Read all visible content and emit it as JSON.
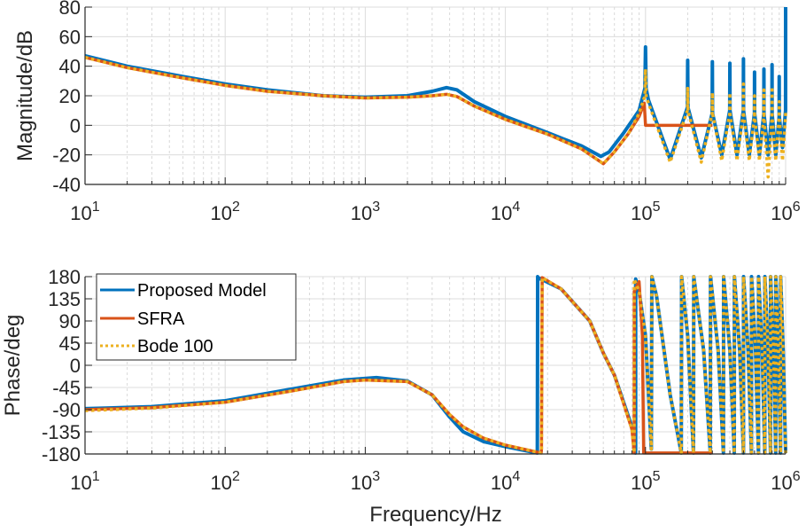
{
  "chart_data": [
    {
      "type": "line",
      "panel": "magnitude",
      "title": "",
      "xlabel": "",
      "ylabel": "Magnitude/dB",
      "xscale": "log",
      "xlim": [
        10,
        1000000
      ],
      "ylim": [
        -40,
        80
      ],
      "xticks": [
        {
          "base": "10",
          "exp": "1"
        },
        {
          "base": "10",
          "exp": "2"
        },
        {
          "base": "10",
          "exp": "3"
        },
        {
          "base": "10",
          "exp": "4"
        },
        {
          "base": "10",
          "exp": "5"
        },
        {
          "base": "10",
          "exp": "6"
        }
      ],
      "yticks": [
        "80",
        "60",
        "40",
        "20",
        "0",
        "-20",
        "-40"
      ],
      "ytick_values": [
        80,
        60,
        40,
        20,
        0,
        -20,
        -40
      ],
      "grid": true,
      "series": [
        {
          "name": "Proposed Model",
          "color": "#0072BD",
          "style": "solid",
          "x": [
            10,
            20,
            50,
            100,
            200,
            500,
            1000,
            2000,
            3000,
            3800,
            4500,
            6000,
            10000,
            20000,
            35000,
            48000,
            55000,
            70000,
            90000,
            99000,
            100000,
            101000,
            105000,
            150000,
            199000,
            200000,
            201000,
            250000,
            299000,
            300000,
            301000,
            350000,
            399000,
            400000,
            401000,
            450000,
            499000,
            500000,
            501000,
            550000,
            599000,
            600000,
            601000,
            650000,
            699000,
            700000,
            701000,
            750000,
            799000,
            800000,
            801000,
            850000,
            899000,
            900000,
            901000,
            950000,
            999000,
            1000000
          ],
          "y": [
            47,
            40,
            33,
            28,
            24,
            20,
            19,
            20,
            23,
            25.5,
            24,
            16,
            6,
            -5,
            -14,
            -21,
            -18,
            -5,
            10,
            25,
            53,
            25,
            17,
            -23,
            12,
            44,
            12,
            -22,
            8,
            43,
            8,
            -20,
            10,
            42,
            10,
            -20,
            10,
            45,
            10,
            -20,
            8,
            36,
            8,
            -20,
            8,
            38,
            8,
            -20,
            8,
            41,
            8,
            -20,
            6,
            33,
            6,
            -15,
            10,
            80
          ]
        },
        {
          "name": "SFRA",
          "color": "#D95319",
          "style": "solid",
          "x": [
            10,
            20,
            50,
            100,
            200,
            500,
            1000,
            2000,
            3000,
            3800,
            4500,
            6000,
            10000,
            20000,
            35000,
            50000,
            60000,
            75000,
            90000,
            98000,
            100000,
            300000
          ],
          "y": [
            46,
            39,
            32,
            27,
            23,
            20,
            18.5,
            19,
            20,
            21,
            19.5,
            13,
            4,
            -6,
            -16,
            -26,
            -18,
            -6,
            6,
            15,
            0,
            0
          ]
        },
        {
          "name": "Bode 100",
          "color": "#EDB120",
          "style": "dotted",
          "x": [
            10,
            20,
            50,
            100,
            200,
            500,
            1000,
            2000,
            3000,
            3800,
            4500,
            6000,
            10000,
            20000,
            35000,
            50000,
            60000,
            75000,
            90000,
            99000,
            100000,
            101000,
            105000,
            150000,
            199000,
            200000,
            201000,
            250000,
            299000,
            300000,
            301000,
            350000,
            399000,
            400000,
            401000,
            450000,
            499000,
            500000,
            501000,
            550000,
            599000,
            600000,
            601000,
            650000,
            699000,
            700000,
            701000,
            750000,
            799000,
            800000,
            801000,
            850000,
            899000,
            900000,
            901000,
            950000,
            999000,
            1000000
          ],
          "y": [
            46,
            39,
            32,
            27,
            23,
            20,
            18.5,
            19,
            20,
            21,
            19.5,
            13,
            4,
            -6,
            -16,
            -26,
            -18,
            -6,
            8,
            20,
            38,
            20,
            15,
            -25,
            10,
            25,
            10,
            -25,
            8,
            22,
            8,
            -24,
            8,
            22,
            8,
            -24,
            8,
            28,
            8,
            -24,
            6,
            20,
            6,
            -24,
            6,
            24,
            6,
            -35,
            6,
            26,
            6,
            -24,
            6,
            16,
            6,
            -24,
            6,
            10
          ]
        }
      ]
    },
    {
      "type": "line",
      "panel": "phase",
      "title": "",
      "xlabel": "Frequency/Hz",
      "ylabel": "Phase/deg",
      "xscale": "log",
      "xlim": [
        10,
        1000000
      ],
      "ylim": [
        -180,
        180
      ],
      "xticks": [
        {
          "base": "10",
          "exp": "1"
        },
        {
          "base": "10",
          "exp": "2"
        },
        {
          "base": "10",
          "exp": "3"
        },
        {
          "base": "10",
          "exp": "4"
        },
        {
          "base": "10",
          "exp": "5"
        },
        {
          "base": "10",
          "exp": "6"
        }
      ],
      "yticks": [
        "180",
        "135",
        "90",
        "45",
        "0",
        "-45",
        "-90",
        "-135",
        "-180"
      ],
      "ytick_values": [
        180,
        135,
        90,
        45,
        0,
        -45,
        -90,
        -135,
        -180
      ],
      "grid": true,
      "legend": {
        "location": "top-left",
        "entries": [
          "Proposed Model",
          "SFRA",
          "Bode 100"
        ]
      },
      "series": [
        {
          "name": "Proposed Model",
          "color": "#0072BD",
          "style": "solid",
          "x": [
            10,
            30,
            100,
            300,
            700,
            1200,
            2000,
            3000,
            4000,
            5000,
            7000,
            10000,
            16900,
            17000,
            17100,
            25000,
            40000,
            50000,
            60000,
            80000,
            85000,
            85100,
            90000,
            100000,
            110000,
            111000,
            120000,
            150000,
            180000,
            181000,
            200000,
            220000,
            221000,
            260000,
            290000,
            291000,
            330000,
            360000,
            361000,
            400000,
            430000,
            431000,
            470000,
            500000,
            501000,
            540000,
            570000,
            571000,
            610000,
            640000,
            641000,
            680000,
            710000,
            711000,
            750000,
            780000,
            781000,
            820000,
            850000,
            851000,
            890000,
            920000,
            921000,
            960000,
            1000000
          ],
          "y": [
            -88,
            -84,
            -72,
            -48,
            -30,
            -25,
            -32,
            -60,
            -105,
            -135,
            -155,
            -165,
            -178,
            180,
            178,
            155,
            90,
            25,
            -20,
            -125,
            -178,
            175,
            150,
            60,
            -170,
            180,
            140,
            -60,
            -178,
            180,
            60,
            -178,
            180,
            30,
            -178,
            180,
            30,
            -178,
            180,
            30,
            -178,
            180,
            30,
            -178,
            180,
            30,
            -178,
            180,
            30,
            -178,
            180,
            30,
            -178,
            180,
            30,
            -178,
            180,
            30,
            -178,
            180,
            30,
            -178,
            180,
            30,
            -178
          ]
        },
        {
          "name": "SFRA",
          "color": "#D95319",
          "style": "solid",
          "x": [
            10,
            30,
            100,
            300,
            700,
            1000,
            2000,
            3000,
            4000,
            5000,
            7000,
            10000,
            18000,
            18100,
            18300,
            25000,
            40000,
            50000,
            60000,
            80000,
            83000,
            83100,
            90000,
            95000,
            97000,
            300000
          ],
          "y": [
            -90,
            -86,
            -75,
            -52,
            -33,
            -30,
            -33,
            -60,
            -100,
            -125,
            -148,
            -162,
            -178,
            -170,
            178,
            155,
            90,
            25,
            -20,
            -130,
            -178,
            150,
            170,
            60,
            -178,
            -178
          ]
        },
        {
          "name": "Bode 100",
          "color": "#EDB120",
          "style": "dotted",
          "x": [
            10,
            30,
            100,
            300,
            700,
            1000,
            2000,
            3000,
            4000,
            5000,
            7000,
            10000,
            18000,
            18100,
            18300,
            25000,
            40000,
            50000,
            60000,
            80000,
            83000,
            83100,
            90000,
            100000,
            110000,
            111000,
            120000,
            150000,
            180000,
            181000,
            200000,
            220000,
            221000,
            260000,
            290000,
            291000,
            330000,
            360000,
            361000,
            400000,
            430000,
            431000,
            470000,
            500000,
            501000,
            540000,
            570000,
            571000,
            610000,
            640000,
            641000,
            680000,
            710000,
            711000,
            750000,
            780000,
            781000,
            820000,
            850000,
            851000,
            890000,
            920000,
            921000,
            960000,
            1000000
          ],
          "y": [
            -92,
            -87,
            -75,
            -52,
            -33,
            -30,
            -33,
            -60,
            -100,
            -125,
            -148,
            -162,
            -178,
            -170,
            178,
            155,
            90,
            25,
            -20,
            -130,
            -178,
            175,
            150,
            60,
            -170,
            180,
            140,
            -60,
            -178,
            180,
            60,
            -178,
            180,
            30,
            -178,
            180,
            30,
            -178,
            180,
            30,
            -178,
            180,
            30,
            -178,
            180,
            30,
            -178,
            180,
            30,
            -178,
            180,
            30,
            -178,
            180,
            30,
            -178,
            180,
            30,
            -178,
            180,
            30,
            -178,
            180,
            30,
            -178
          ]
        }
      ]
    }
  ]
}
